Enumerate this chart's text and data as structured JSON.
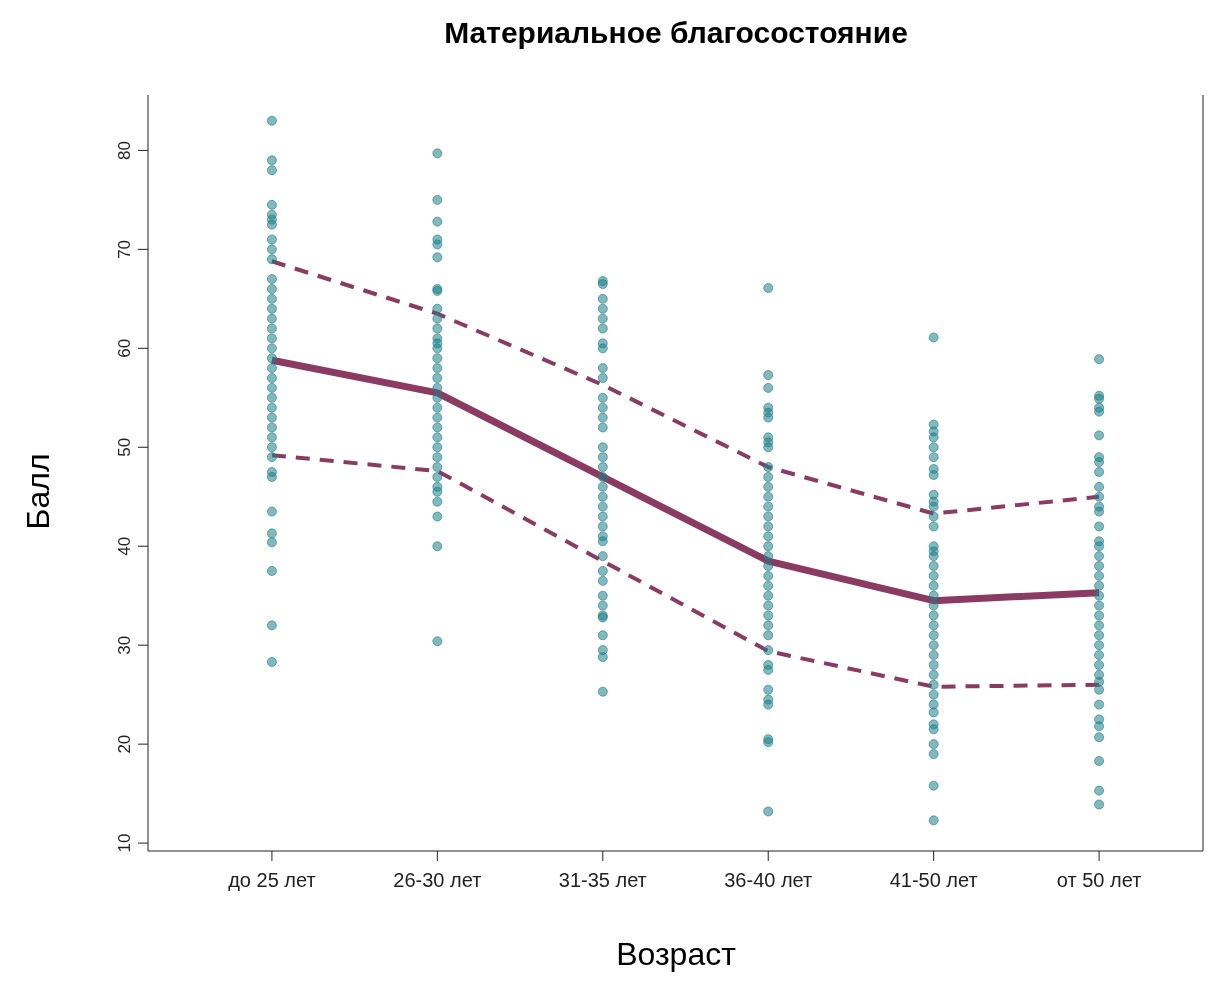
{
  "chart_data": {
    "type": "scatter",
    "title": "Материальное благосостояние",
    "xlabel": "Возраст",
    "ylabel": "Балл",
    "categories": [
      "до 25 лет",
      "26-30 лет",
      "31-35 лет",
      "36-40 лет",
      "41-50 лет",
      "от 50 лет"
    ],
    "ylim": [
      9.2,
      85.6
    ],
    "yticks": [
      10,
      20,
      30,
      40,
      50,
      60,
      70,
      80
    ],
    "grid": false,
    "legend": false,
    "series": [
      {
        "marker": "circle",
        "color": "#1b7f88",
        "x": [
          "до 25 лет",
          "до 25 лет",
          "до 25 лет",
          "до 25 лет",
          "до 25 лет",
          "до 25 лет",
          "до 25 лет",
          "до 25 лет",
          "до 25 лет",
          "до 25 лет",
          "до 25 лет",
          "до 25 лет",
          "до 25 лет",
          "до 25 лет",
          "до 25 лет",
          "до 25 лет",
          "до 25 лет",
          "до 25 лет",
          "до 25 лет",
          "до 25 лет",
          "до 25 лет",
          "до 25 лет",
          "до 25 лет",
          "до 25 лет",
          "до 25 лет",
          "до 25 лет",
          "до 25 лет",
          "до 25 лет",
          "до 25 лет",
          "до 25 лет",
          "до 25 лет",
          "до 25 лет",
          "до 25 лет",
          "до 25 лет",
          "до 25 лет",
          "до 25 лет",
          "до 25 лет",
          "26-30 лет",
          "26-30 лет",
          "26-30 лет",
          "26-30 лет",
          "26-30 лет",
          "26-30 лет",
          "26-30 лет",
          "26-30 лет",
          "26-30 лет",
          "26-30 лет",
          "26-30 лет",
          "26-30 лет",
          "26-30 лет",
          "26-30 лет",
          "26-30 лет",
          "26-30 лет",
          "26-30 лет",
          "26-30 лет",
          "26-30 лет",
          "26-30 лет",
          "26-30 лет",
          "26-30 лет",
          "26-30 лет",
          "26-30 лет",
          "26-30 лет",
          "26-30 лет",
          "26-30 лет",
          "26-30 лет",
          "26-30 лет",
          "26-30 лет",
          "26-30 лет",
          "26-30 лет",
          "26-30 лет",
          "31-35 лет",
          "31-35 лет",
          "31-35 лет",
          "31-35 лет",
          "31-35 лет",
          "31-35 лет",
          "31-35 лет",
          "31-35 лет",
          "31-35 лет",
          "31-35 лет",
          "31-35 лет",
          "31-35 лет",
          "31-35 лет",
          "31-35 лет",
          "31-35 лет",
          "31-35 лет",
          "31-35 лет",
          "31-35 лет",
          "31-35 лет",
          "31-35 лет",
          "31-35 лет",
          "31-35 лет",
          "31-35 лет",
          "31-35 лет",
          "31-35 лет",
          "31-35 лет",
          "31-35 лет",
          "31-35 лет",
          "31-35 лет",
          "31-35 лет",
          "31-35 лет",
          "31-35 лет",
          "31-35 лет",
          "31-35 лет",
          "31-35 лет",
          "31-35 лет",
          "36-40 лет",
          "36-40 лет",
          "36-40 лет",
          "36-40 лет",
          "36-40 лет",
          "36-40 лет",
          "36-40 лет",
          "36-40 лет",
          "36-40 лет",
          "36-40 лет",
          "36-40 лет",
          "36-40 лет",
          "36-40 лет",
          "36-40 лет",
          "36-40 лет",
          "36-40 лет",
          "36-40 лет",
          "36-40 лет",
          "36-40 лет",
          "36-40 лет",
          "36-40 лет",
          "36-40 лет",
          "36-40 лет",
          "36-40 лет",
          "36-40 лет",
          "36-40 лет",
          "36-40 лет",
          "36-40 лет",
          "36-40 лет",
          "36-40 лет",
          "36-40 лет",
          "36-40 лет",
          "36-40 лет",
          "36-40 лет",
          "36-40 лет",
          "36-40 лет",
          "41-50 лет",
          "41-50 лет",
          "41-50 лет",
          "41-50 лет",
          "41-50 лет",
          "41-50 лет",
          "41-50 лет",
          "41-50 лет",
          "41-50 лет",
          "41-50 лет",
          "41-50 лет",
          "41-50 лет",
          "41-50 лет",
          "41-50 лет",
          "41-50 лет",
          "41-50 лет",
          "41-50 лет",
          "41-50 лет",
          "41-50 лет",
          "41-50 лет",
          "41-50 лет",
          "41-50 лет",
          "41-50 лет",
          "41-50 лет",
          "41-50 лет",
          "41-50 лет",
          "41-50 лет",
          "41-50 лет",
          "41-50 лет",
          "41-50 лет",
          "41-50 лет",
          "41-50 лет",
          "41-50 лет",
          "41-50 лет",
          "41-50 лет",
          "41-50 лет",
          "41-50 лет",
          "41-50 лет",
          "от 50 лет",
          "от 50 лет",
          "от 50 лет",
          "от 50 лет",
          "от 50 лет",
          "от 50 лет",
          "от 50 лет",
          "от 50 лет",
          "от 50 лет",
          "от 50 лет",
          "от 50 лет",
          "от 50 лет",
          "от 50 лет",
          "от 50 лет",
          "от 50 лет",
          "от 50 лет",
          "от 50 лет",
          "от 50 лет",
          "от 50 лет",
          "от 50 лет",
          "от 50 лет",
          "от 50 лет",
          "от 50 лет",
          "от 50 лет",
          "от 50 лет",
          "от 50 лет",
          "от 50 лет",
          "от 50 лет",
          "от 50 лет",
          "от 50 лет",
          "от 50 лет",
          "от 50 лет",
          "от 50 лет",
          "от 50 лет",
          "от 50 лет",
          "от 50 лет",
          "от 50 лет",
          "от 50 лет"
        ],
        "values": [
          83,
          79,
          78,
          74.5,
          73.5,
          73,
          72.5,
          71,
          70,
          69,
          67,
          66,
          65,
          64,
          63,
          62,
          61,
          60,
          59,
          58,
          57,
          56,
          55,
          54,
          53,
          52,
          51,
          50,
          49,
          47.5,
          47,
          43.5,
          41.3,
          40.4,
          37.5,
          32,
          28.3,
          79.7,
          75,
          72.8,
          71,
          70.5,
          69.2,
          66,
          65.8,
          64,
          63,
          62,
          61,
          60.5,
          60,
          59,
          58,
          57,
          56,
          55,
          54,
          53,
          52,
          51,
          50,
          49,
          48,
          47,
          46,
          45.5,
          44.5,
          43,
          40,
          30.4,
          66.8,
          66.5,
          65,
          64,
          63,
          62,
          60.5,
          60,
          58,
          57,
          55,
          54,
          53,
          52,
          50,
          49,
          48,
          47,
          46,
          45,
          44,
          43,
          42,
          41,
          40.5,
          39,
          37.5,
          36.5,
          35,
          34,
          33,
          32.8,
          31,
          29.5,
          28.8,
          25.3,
          66.1,
          57.3,
          56,
          54,
          53.5,
          53,
          51,
          50.5,
          50,
          48,
          47,
          46,
          45,
          44,
          43,
          42,
          41,
          40,
          39,
          38,
          37,
          36,
          35,
          34,
          33,
          32,
          31,
          29.5,
          28,
          27.5,
          25.5,
          24.5,
          24,
          20.5,
          20.2,
          13.2,
          61.1,
          52.3,
          51.6,
          51,
          50,
          49,
          47.8,
          47.2,
          45.2,
          44.5,
          44,
          43,
          42,
          40,
          39.5,
          39,
          38,
          37,
          36,
          35,
          34,
          33,
          32,
          31,
          30,
          29,
          28,
          27,
          26,
          25,
          24,
          23.2,
          22,
          21.5,
          20,
          19,
          15.8,
          12.3,
          58.9,
          55.2,
          54.9,
          54,
          53.6,
          51.2,
          49,
          48.5,
          47.5,
          46,
          45,
          44,
          43.5,
          42,
          40.5,
          40,
          39,
          38,
          37,
          36,
          35,
          34,
          33,
          32,
          31,
          30,
          29,
          28,
          27,
          26.3,
          25.5,
          24,
          22.5,
          21.8,
          20.7,
          18.3,
          15.3,
          13.9
        ]
      },
      {
        "type": "line",
        "marker": "none",
        "color": "#8b3a62",
        "line_style": "solid",
        "values": [
          58.8,
          55.5,
          47,
          38.5,
          34.5,
          35.3
        ]
      },
      {
        "type": "line",
        "marker": "none",
        "color": "#8b3a62",
        "line_style": "dashed",
        "values": [
          68.8,
          63.5,
          56.3,
          48,
          43.3,
          45
        ]
      },
      {
        "type": "line",
        "marker": "none",
        "color": "#8b3a62",
        "line_style": "dashed",
        "values": [
          49.2,
          47.6,
          38.5,
          29.4,
          25.8,
          26
        ]
      }
    ]
  }
}
